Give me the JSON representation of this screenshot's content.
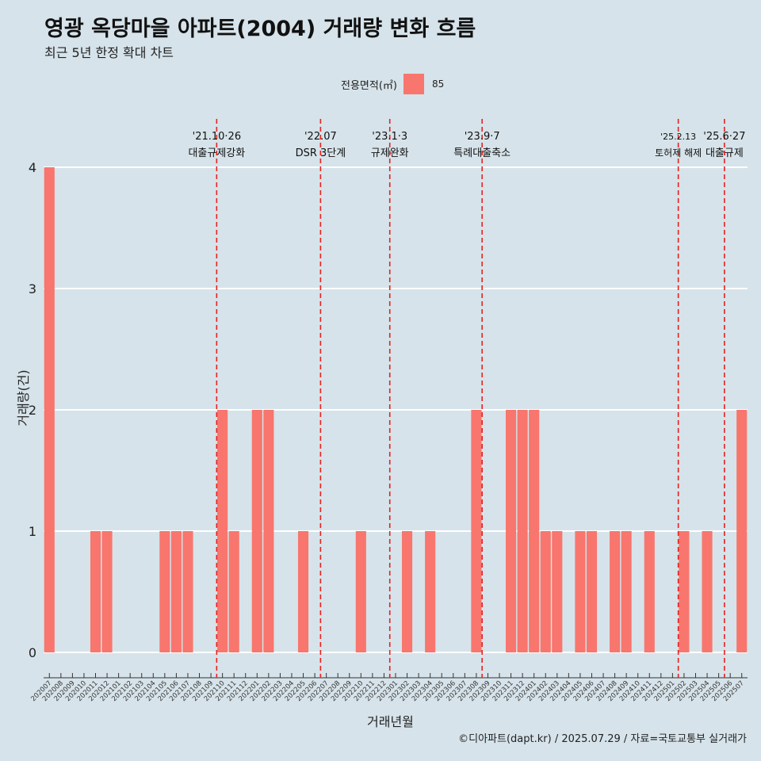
{
  "header": {
    "title": "영광 옥당마을 아파트(2004) 거래량 변화 흐름",
    "subtitle": "최근 5년 한정 확대 차트"
  },
  "legend": {
    "title": "전용면적(㎡)",
    "entries": [
      {
        "label": "85",
        "color": "#f8766d"
      }
    ]
  },
  "footer": {
    "caption": "©디아파트(dapt.kr) / 2025.07.29 / 자료=국토교통부 실거래가"
  },
  "colors": {
    "background": "#d6e3ea",
    "bar": "#f8766d",
    "event_line": "#e8201e",
    "grid": "#ffffff"
  },
  "chart_data": {
    "type": "bar",
    "xlabel": "거래년월",
    "ylabel": "거래량(건)",
    "ylim": [
      0,
      4
    ],
    "yticks": [
      0,
      1,
      2,
      3,
      4
    ],
    "categories": [
      "202007",
      "202008",
      "202009",
      "202010",
      "202011",
      "202012",
      "202101",
      "202102",
      "202103",
      "202104",
      "202105",
      "202106",
      "202107",
      "202108",
      "202109",
      "202110",
      "202111",
      "202112",
      "202201",
      "202202",
      "202203",
      "202204",
      "202205",
      "202206",
      "202207",
      "202208",
      "202209",
      "202210",
      "202211",
      "202212",
      "202301",
      "202302",
      "202303",
      "202304",
      "202305",
      "202306",
      "202307",
      "202308",
      "202309",
      "202310",
      "202311",
      "202312",
      "202401",
      "202402",
      "202403",
      "202404",
      "202405",
      "202406",
      "202407",
      "202408",
      "202409",
      "202410",
      "202411",
      "202412",
      "202501",
      "202502",
      "202503",
      "202504",
      "202505",
      "202506",
      "202507"
    ],
    "series": [
      {
        "name": "85",
        "values": [
          4,
          0,
          0,
          0,
          1,
          1,
          0,
          0,
          0,
          0,
          1,
          1,
          1,
          0,
          0,
          2,
          1,
          0,
          2,
          2,
          0,
          0,
          1,
          0,
          0,
          0,
          0,
          1,
          0,
          0,
          0,
          1,
          0,
          1,
          0,
          0,
          0,
          2,
          0,
          0,
          2,
          2,
          2,
          1,
          1,
          0,
          1,
          1,
          0,
          1,
          1,
          0,
          1,
          0,
          0,
          1,
          0,
          1,
          0,
          0,
          2
        ]
      }
    ],
    "events": [
      {
        "date_label": "'21.10·26",
        "label": "대출규제강화",
        "category": "202110"
      },
      {
        "date_label": "'22.07",
        "label": "DSR 3단계",
        "category": "202207"
      },
      {
        "date_label": "'23.1·3",
        "label": "규제완화",
        "category": "202301"
      },
      {
        "date_label": "'23.9·7",
        "label": "특례대출축소",
        "category": "202309"
      },
      {
        "date_label": "'25.2.13",
        "label": "토허제 해제",
        "category": "202502"
      },
      {
        "date_label": "'25.6·27",
        "label": "대출규제",
        "category": "202506"
      }
    ]
  }
}
